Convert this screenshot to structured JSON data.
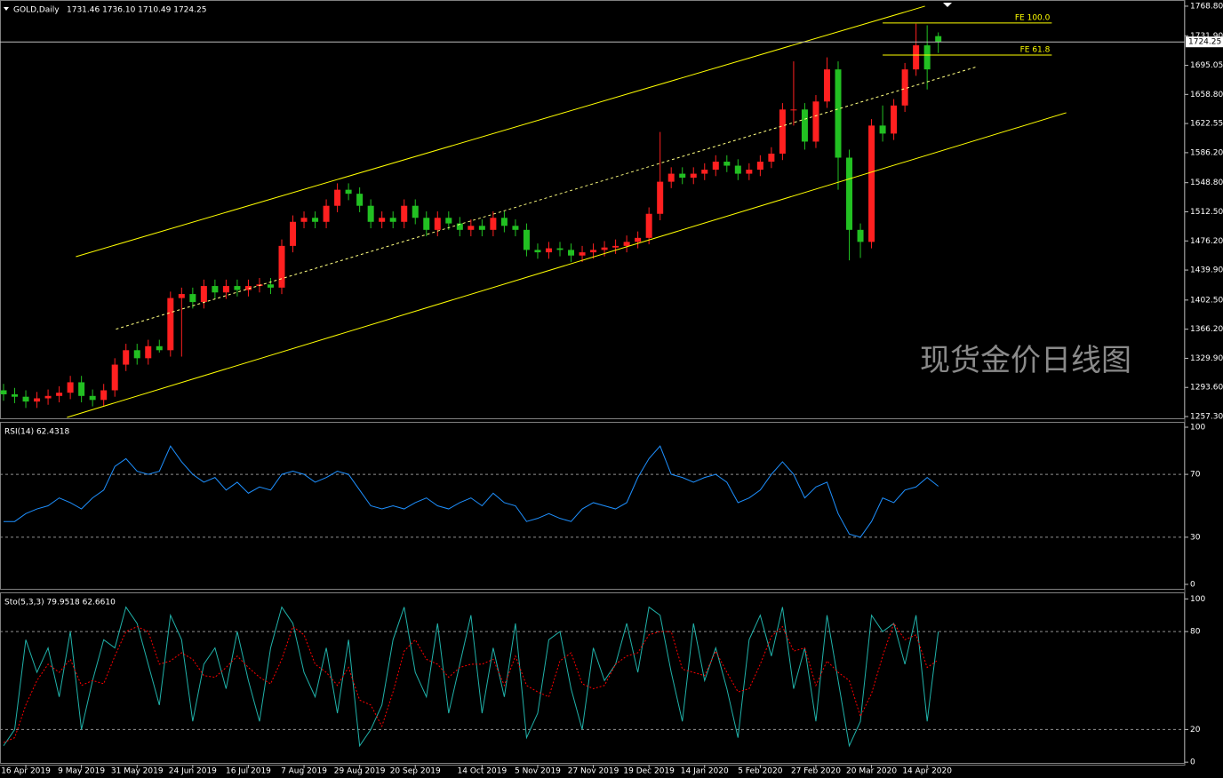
{
  "chart_data": [
    {
      "type": "candlestick",
      "title": "GOLD,Daily",
      "subtitle": "1731.46 1736.10 1710.49 1724.25",
      "up_color": "#ff2020",
      "down_color": "#22c022",
      "categories": [
        null,
        null,
        "16 Apr 2019",
        null,
        null,
        null,
        null,
        "9 May 2019",
        null,
        null,
        null,
        null,
        "31 May 2019",
        null,
        null,
        null,
        null,
        "24 Jun 2019",
        null,
        null,
        null,
        null,
        "16 Jul 2019",
        null,
        null,
        null,
        null,
        "7 Aug 2019",
        null,
        null,
        null,
        null,
        "29 Aug 2019",
        null,
        null,
        null,
        null,
        "20 Sep 2019",
        null,
        null,
        null,
        null,
        null,
        "14 Oct 2019",
        null,
        null,
        null,
        null,
        "5 Nov 2019",
        null,
        null,
        null,
        null,
        "27 Nov 2019",
        null,
        null,
        null,
        null,
        "19 Dec 2019",
        null,
        null,
        null,
        null,
        "14 Jan 2020",
        null,
        null,
        null,
        null,
        "5 Feb 2020",
        null,
        null,
        null,
        null,
        "27 Feb 2020",
        null,
        null,
        null,
        null,
        "20 Mar 2020",
        null,
        null,
        null,
        null,
        "14 Apr 2020",
        null
      ],
      "open": [
        1290,
        1285,
        1282,
        1276,
        1280,
        1283,
        1287,
        1300,
        1283,
        1278,
        1290,
        1322,
        1340,
        1330,
        1345,
        1340,
        1405,
        1410,
        1400,
        1420,
        1412,
        1420,
        1415,
        1420,
        1422,
        1418,
        1470,
        1500,
        1505,
        1500,
        1520,
        1540,
        1535,
        1520,
        1500,
        1505,
        1500,
        1520,
        1505,
        1490,
        1505,
        1498,
        1490,
        1495,
        1490,
        1505,
        1495,
        1490,
        1465,
        1462,
        1467,
        1465,
        1458,
        1462,
        1465,
        1468,
        1470,
        1475,
        1480,
        1510,
        1550,
        1560,
        1555,
        1560,
        1565,
        1575,
        1570,
        1560,
        1565,
        1575,
        1585,
        1640,
        1640,
        1600,
        1650,
        1690,
        1580,
        1490,
        1475,
        1620,
        1610,
        1645,
        1690,
        1720,
        1731.46
      ],
      "high": [
        1298,
        1293,
        1290,
        1288,
        1291,
        1295,
        1308,
        1308,
        1291,
        1298,
        1330,
        1348,
        1348,
        1353,
        1353,
        1413,
        1418,
        1418,
        1428,
        1428,
        1428,
        1428,
        1428,
        1430,
        1430,
        1478,
        1508,
        1513,
        1513,
        1528,
        1548,
        1548,
        1543,
        1528,
        1513,
        1513,
        1528,
        1528,
        1513,
        1513,
        1513,
        1506,
        1503,
        1503,
        1513,
        1513,
        1503,
        1498,
        1473,
        1475,
        1475,
        1473,
        1470,
        1473,
        1476,
        1478,
        1483,
        1488,
        1518,
        1612,
        1568,
        1568,
        1568,
        1573,
        1583,
        1583,
        1578,
        1573,
        1583,
        1593,
        1648,
        1700,
        1648,
        1658,
        1705,
        1700,
        1590,
        1498,
        1628,
        1645,
        1653,
        1698,
        1747,
        1745,
        1736.1
      ],
      "low": [
        1277,
        1274,
        1268,
        1268,
        1272,
        1275,
        1279,
        1275,
        1270,
        1270,
        1282,
        1314,
        1322,
        1322,
        1337,
        1332,
        1332,
        1392,
        1392,
        1404,
        1404,
        1407,
        1407,
        1412,
        1410,
        1410,
        1462,
        1492,
        1492,
        1492,
        1512,
        1527,
        1512,
        1492,
        1492,
        1492,
        1492,
        1497,
        1482,
        1482,
        1490,
        1482,
        1482,
        1482,
        1482,
        1487,
        1482,
        1457,
        1454,
        1454,
        1457,
        1450,
        1450,
        1454,
        1457,
        1460,
        1462,
        1467,
        1472,
        1502,
        1542,
        1547,
        1547,
        1552,
        1557,
        1562,
        1552,
        1552,
        1557,
        1567,
        1577,
        1620,
        1590,
        1592,
        1642,
        1540,
        1452,
        1455,
        1467,
        1600,
        1602,
        1637,
        1682,
        1665,
        1710.49
      ],
      "close": [
        1285,
        1282,
        1276,
        1280,
        1283,
        1287,
        1300,
        1283,
        1278,
        1290,
        1322,
        1340,
        1330,
        1345,
        1340,
        1405,
        1410,
        1400,
        1420,
        1412,
        1420,
        1415,
        1420,
        1422,
        1418,
        1470,
        1500,
        1505,
        1500,
        1520,
        1540,
        1535,
        1520,
        1500,
        1505,
        1500,
        1520,
        1505,
        1490,
        1505,
        1498,
        1490,
        1495,
        1490,
        1505,
        1495,
        1490,
        1465,
        1462,
        1467,
        1465,
        1458,
        1462,
        1465,
        1468,
        1470,
        1475,
        1480,
        1510,
        1550,
        1560,
        1555,
        1560,
        1565,
        1575,
        1570,
        1560,
        1565,
        1575,
        1585,
        1640,
        1640,
        1600,
        1650,
        1690,
        1580,
        1490,
        1475,
        1620,
        1610,
        1645,
        1690,
        1720,
        1690,
        1724.25
      ],
      "ylim": [
        1254.0,
        1776.5
      ],
      "yticks": [
        {
          "value": 1768.8,
          "label": "1768.80"
        },
        {
          "value": 1731.9,
          "label": "1731.90"
        },
        1695.05,
        {
          "value": 1658.8,
          "label": "1658.80"
        },
        1622.55,
        {
          "value": 1586.2,
          "label": "1586.20"
        },
        {
          "value": 1548.8,
          "label": "1548.80"
        },
        {
          "value": 1512.5,
          "label": "1512.50"
        },
        {
          "value": 1476.2,
          "label": "1476.20"
        },
        {
          "value": 1439.9,
          "label": "1439.90"
        },
        {
          "value": 1402.5,
          "label": "1402.50"
        },
        {
          "value": 1366.2,
          "label": "1366.20"
        },
        {
          "value": 1329.9,
          "label": "1329.90"
        },
        {
          "value": 1293.6,
          "label": "1293.60"
        },
        {
          "value": 1257.3,
          "label": "1257.30"
        }
      ],
      "current_price": 1724.25,
      "trendlines": [
        {
          "x": [
            6.5,
            82.8
          ],
          "y": [
            1456.6,
            1768.8
          ],
          "color": "#ffff00",
          "dashed": false
        },
        {
          "x": [
            10.1,
            87.5
          ],
          "y": [
            1366.2,
            1693.5
          ],
          "color": "#ffff80",
          "dashed": true
        },
        {
          "x": [
            5.7,
            95.5
          ],
          "y": [
            1256.2,
            1636.0
          ],
          "color": "#ffff00",
          "dashed": false
        }
      ],
      "fe_levels": [
        {
          "label": "FE 100.0",
          "value": 1747.8,
          "x": [
            79.0,
            94.2
          ]
        },
        {
          "label": "FE 61.8",
          "value": 1707.9,
          "x": [
            79.0,
            94.2
          ]
        }
      ],
      "watermark": "现货金价日线图"
    },
    {
      "type": "line",
      "title": "RSI(14) 62.4318",
      "color": "#1e90ff",
      "values": [
        40,
        40,
        45,
        48,
        50,
        55,
        52,
        48,
        55,
        60,
        75,
        80,
        72,
        70,
        72,
        88,
        78,
        70,
        65,
        68,
        60,
        65,
        58,
        62,
        60,
        70,
        72,
        70,
        65,
        68,
        72,
        70,
        60,
        50,
        48,
        50,
        48,
        52,
        55,
        50,
        48,
        52,
        55,
        50,
        58,
        52,
        50,
        40,
        42,
        45,
        42,
        40,
        48,
        52,
        50,
        48,
        52,
        68,
        80,
        88,
        70,
        68,
        65,
        68,
        70,
        65,
        52,
        55,
        60,
        70,
        78,
        70,
        55,
        62,
        65,
        45,
        32,
        30,
        40,
        55,
        52,
        60,
        62,
        68,
        62.4318
      ],
      "ylim": [
        -3.4,
        103.4
      ],
      "yticks": [
        0,
        30,
        70,
        100
      ],
      "dashed_levels": [
        30,
        70
      ]
    },
    {
      "type": "line",
      "title": "Sto(5,3,3) 79.9518 62.6610",
      "series": [
        {
          "color": "#20b2aa",
          "dashed": false,
          "values": [
            10,
            20,
            75,
            55,
            70,
            40,
            80,
            20,
            50,
            75,
            70,
            95,
            85,
            60,
            35,
            90,
            75,
            25,
            60,
            70,
            45,
            80,
            50,
            25,
            70,
            95,
            85,
            55,
            40,
            70,
            30,
            75,
            10,
            20,
            35,
            75,
            95,
            55,
            40,
            85,
            30,
            60,
            90,
            30,
            70,
            40,
            85,
            15,
            30,
            75,
            80,
            45,
            20,
            70,
            50,
            60,
            85,
            55,
            95,
            90,
            55,
            25,
            85,
            50,
            70,
            45,
            15,
            75,
            90,
            65,
            95,
            45,
            70,
            25,
            90,
            50,
            10,
            25,
            90,
            80,
            85,
            60,
            90,
            25,
            79.9518
          ]
        },
        {
          "color": "#ff0000",
          "dashed": true,
          "values": [
            12,
            15,
            35,
            50,
            60,
            55,
            63,
            47,
            50,
            48,
            65,
            80,
            83,
            80,
            60,
            62,
            67,
            63,
            53,
            52,
            58,
            65,
            58,
            52,
            48,
            63,
            83,
            78,
            60,
            55,
            47,
            58,
            38,
            35,
            22,
            43,
            68,
            75,
            63,
            60,
            52,
            58,
            60,
            60,
            63,
            47,
            65,
            47,
            43,
            40,
            62,
            67,
            48,
            45,
            47,
            60,
            65,
            67,
            78,
            80,
            80,
            57,
            55,
            53,
            68,
            55,
            43,
            45,
            60,
            77,
            83,
            68,
            70,
            47,
            62,
            55,
            50,
            28,
            42,
            65,
            85,
            75,
            78,
            58,
            62.661
          ]
        }
      ],
      "ylim": [
        -1,
        104
      ],
      "yticks": [
        0,
        20,
        80,
        100
      ],
      "dashed_levels": [
        20,
        80
      ]
    }
  ]
}
